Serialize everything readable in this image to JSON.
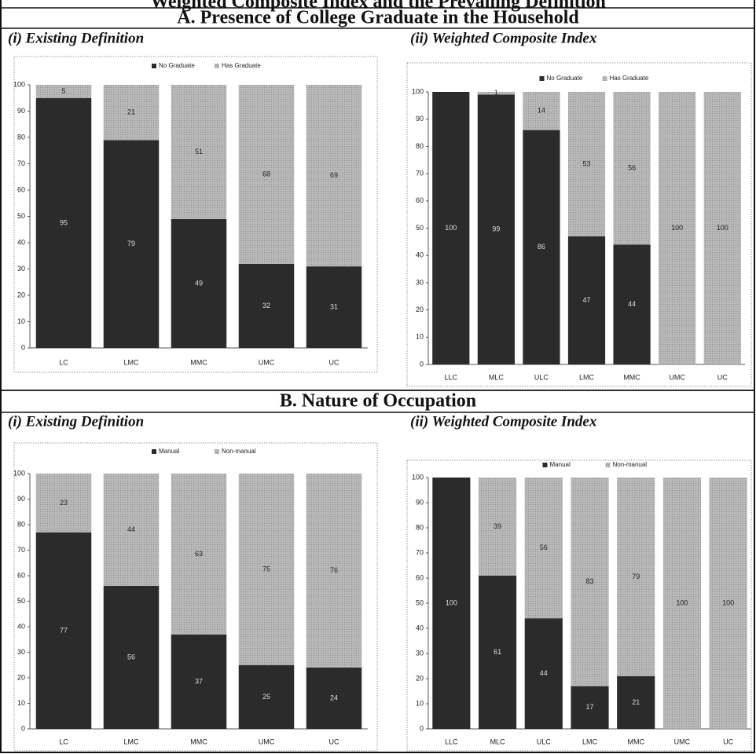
{
  "title": "Weighted Composite Index and the Prevailing Definition",
  "sections": [
    {
      "title": "A.  Presence of College Graduate in the Household"
    },
    {
      "title": "B.  Nature of Occupation"
    }
  ],
  "chart_data": [
    {
      "type": "bar",
      "stacked": true,
      "title": "(i)  Existing Definition",
      "categories": [
        "LC",
        "LMC",
        "MMC",
        "UMC",
        "UC"
      ],
      "series": [
        {
          "name": "No Graduate",
          "color": "#2b2b2b",
          "values": [
            95,
            79,
            49,
            32,
            31
          ]
        },
        {
          "name": "Has Graduate",
          "color": "#b3b3b3",
          "values": [
            5,
            21,
            51,
            68,
            69
          ]
        }
      ],
      "ylim": [
        0,
        100
      ],
      "yticks": [
        0,
        10,
        20,
        30,
        40,
        50,
        60,
        70,
        80,
        90,
        100
      ],
      "legend": "top"
    },
    {
      "type": "bar",
      "stacked": true,
      "title": "(ii)  Weighted Composite Index",
      "categories": [
        "LLC",
        "MLC",
        "ULC",
        "LMC",
        "MMC",
        "UMC",
        "UC"
      ],
      "series": [
        {
          "name": "No Graduate",
          "color": "#2b2b2b",
          "values": [
            100,
            99,
            86,
            47,
            44,
            0,
            0
          ]
        },
        {
          "name": "Has Graduate",
          "color": "#b3b3b3",
          "values": [
            0,
            1,
            14,
            53,
            56,
            100,
            100
          ]
        }
      ],
      "ylim": [
        0,
        100
      ],
      "yticks": [
        0,
        10,
        20,
        30,
        40,
        50,
        60,
        70,
        80,
        90,
        100
      ],
      "legend": "top"
    },
    {
      "type": "bar",
      "stacked": true,
      "title": "(i)  Existing Definition",
      "categories": [
        "LC",
        "LMC",
        "MMC",
        "UMC",
        "UC"
      ],
      "series": [
        {
          "name": "Manual",
          "color": "#2b2b2b",
          "values": [
            77,
            56,
            37,
            25,
            24
          ]
        },
        {
          "name": "Non-manual",
          "color": "#b3b3b3",
          "values": [
            23,
            44,
            63,
            75,
            76
          ]
        }
      ],
      "ylim": [
        0,
        100
      ],
      "yticks": [
        0,
        10,
        20,
        30,
        40,
        50,
        60,
        70,
        80,
        90,
        100
      ],
      "legend": "top"
    },
    {
      "type": "bar",
      "stacked": true,
      "title": "(ii)  Weighted Composite Index",
      "categories": [
        "LLC",
        "MLC",
        "ULC",
        "LMC",
        "MMC",
        "UMC",
        "UC"
      ],
      "series": [
        {
          "name": "Manual",
          "color": "#2b2b2b",
          "values": [
            100,
            61,
            44,
            17,
            21,
            0,
            0
          ]
        },
        {
          "name": "Non-manual",
          "color": "#b3b3b3",
          "values": [
            0,
            39,
            56,
            83,
            79,
            100,
            100
          ]
        }
      ],
      "ylim": [
        0,
        100
      ],
      "yticks": [
        0,
        10,
        20,
        30,
        40,
        50,
        60,
        70,
        80,
        90,
        100
      ],
      "legend": "top"
    }
  ]
}
